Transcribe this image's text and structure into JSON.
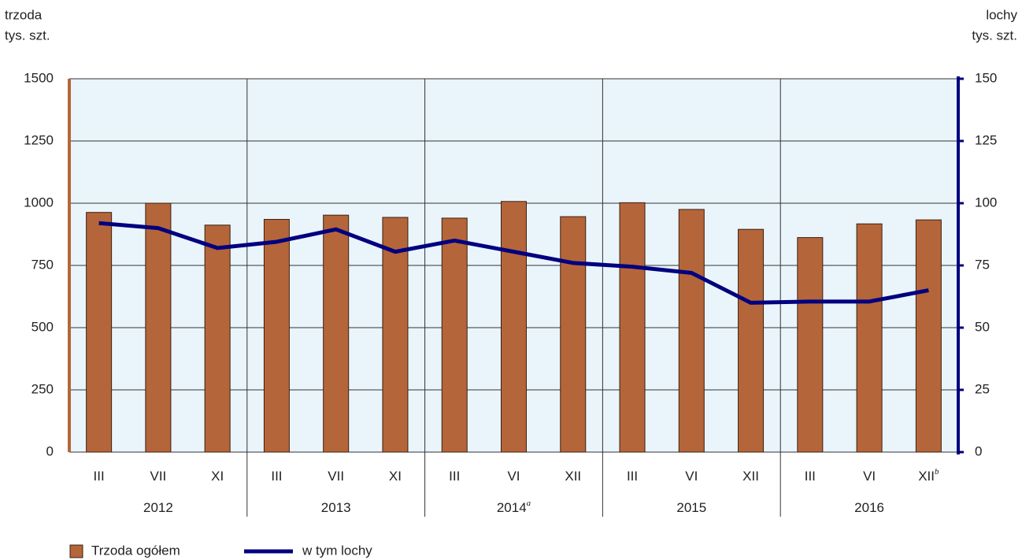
{
  "chart_data": {
    "type": "bar_line",
    "y_label": [
      "trzoda",
      "tys. szt."
    ],
    "y2_label": [
      "lochy",
      "tys. szt."
    ],
    "categories": [
      "III",
      "VII",
      "XI",
      "III",
      "VII",
      "XI",
      "III",
      "VI",
      "XII",
      "III",
      "VI",
      "XII",
      "III",
      "VI",
      {
        "label": "XII",
        "superscript": "b"
      }
    ],
    "groups": [
      {
        "label": "2012"
      },
      {
        "label": "2013"
      },
      {
        "label": "2014",
        "superscript": "a"
      },
      {
        "label": "2015"
      },
      {
        "label": "2016"
      }
    ],
    "series": [
      {
        "name": "Trzoda ogółem",
        "type": "bar",
        "color": "#b5653a",
        "values": [
          963,
          1000,
          912,
          935,
          952,
          943,
          940,
          1007,
          946,
          1002,
          975,
          895,
          862,
          917,
          933
        ]
      },
      {
        "name": "w tym lochy",
        "type": "line",
        "axis": "y2",
        "color": "#00007f",
        "values": [
          92,
          90,
          82,
          84.5,
          89.5,
          80.5,
          85,
          80.5,
          76,
          74.5,
          72,
          60,
          60.5,
          60.5,
          65
        ]
      }
    ],
    "ylim": [
      0,
      1500
    ],
    "yticks": [
      0,
      250,
      500,
      750,
      1000,
      1250,
      1500
    ],
    "y2lim": [
      0,
      150
    ],
    "y2ticks": [
      0,
      25,
      50,
      75,
      100,
      125,
      150
    ],
    "grid": true,
    "legend": "bottom-left"
  }
}
